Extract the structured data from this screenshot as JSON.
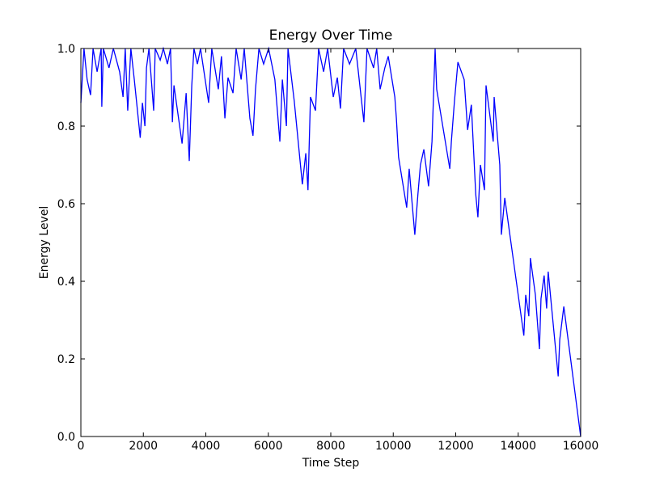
{
  "chart_data": {
    "type": "line",
    "title": "Energy Over Time",
    "xlabel": "Time Step",
    "ylabel": "Energy Level",
    "x": [
      0,
      100,
      200,
      310,
      390,
      520,
      650,
      670,
      720,
      900,
      1040,
      1240,
      1350,
      1420,
      1500,
      1600,
      1710,
      1900,
      1970,
      2050,
      2100,
      2180,
      2330,
      2380,
      2540,
      2640,
      2770,
      2870,
      2930,
      2980,
      3240,
      3370,
      3470,
      3550,
      3620,
      3730,
      3830,
      4090,
      4190,
      4400,
      4500,
      4610,
      4710,
      4870,
      4970,
      5130,
      5230,
      5410,
      5510,
      5590,
      5700,
      5850,
      6010,
      6210,
      6370,
      6450,
      6580,
      6630,
      6830,
      7090,
      7200,
      7270,
      7350,
      7510,
      7610,
      7770,
      7900,
      8080,
      8210,
      8310,
      8410,
      8600,
      8800,
      9060,
      9160,
      9370,
      9470,
      9580,
      9730,
      9840,
      10050,
      10100,
      10170,
      10430,
      10510,
      10690,
      10790,
      10870,
      10980,
      11130,
      11240,
      11340,
      11390,
      11810,
      11860,
      11960,
      12070,
      12270,
      12380,
      12500,
      12640,
      12710,
      12790,
      12920,
      12970,
      13200,
      13230,
      13410,
      13460,
      13570,
      14180,
      14240,
      14340,
      14390,
      14550,
      14680,
      14730,
      14830,
      14910,
      14960,
      15280,
      15330,
      15460,
      16000
    ],
    "series": [
      {
        "color": "#0000ff",
        "values": [
          0.86,
          1.0,
          0.92,
          0.88,
          1.0,
          0.94,
          1.0,
          0.85,
          1.0,
          0.95,
          1.0,
          0.94,
          0.875,
          1.0,
          0.84,
          1.0,
          0.92,
          0.77,
          0.86,
          0.8,
          0.95,
          1.0,
          0.84,
          1.0,
          0.97,
          1.0,
          0.96,
          1.0,
          0.81,
          0.905,
          0.755,
          0.885,
          0.71,
          0.905,
          1.0,
          0.96,
          1.0,
          0.86,
          1.0,
          0.895,
          0.98,
          0.82,
          0.925,
          0.885,
          1.0,
          0.92,
          1.0,
          0.82,
          0.775,
          0.895,
          1.0,
          0.96,
          1.0,
          0.92,
          0.76,
          0.92,
          0.8,
          1.0,
          0.865,
          0.65,
          0.73,
          0.635,
          0.875,
          0.84,
          1.0,
          0.94,
          1.0,
          0.875,
          0.925,
          0.845,
          1.0,
          0.96,
          1.0,
          0.81,
          1.0,
          0.95,
          1.0,
          0.895,
          0.95,
          0.98,
          0.875,
          0.82,
          0.72,
          0.59,
          0.69,
          0.52,
          0.625,
          0.7,
          0.74,
          0.645,
          0.76,
          1.0,
          0.895,
          0.69,
          0.76,
          0.865,
          0.965,
          0.92,
          0.79,
          0.855,
          0.625,
          0.565,
          0.7,
          0.635,
          0.905,
          0.76,
          0.875,
          0.7,
          0.52,
          0.615,
          0.26,
          0.365,
          0.31,
          0.46,
          0.365,
          0.225,
          0.355,
          0.415,
          0.33,
          0.425,
          0.155,
          0.25,
          0.335,
          0.0
        ]
      }
    ],
    "xlim": [
      0,
      16000
    ],
    "ylim": [
      0,
      1
    ],
    "xticks": [
      0,
      2000,
      4000,
      6000,
      8000,
      10000,
      12000,
      14000,
      16000
    ],
    "yticks": [
      {
        "value": 0,
        "label": "0.0"
      },
      0.2,
      0.4,
      0.6,
      0.8,
      {
        "value": 1,
        "label": "1.0"
      }
    ]
  }
}
